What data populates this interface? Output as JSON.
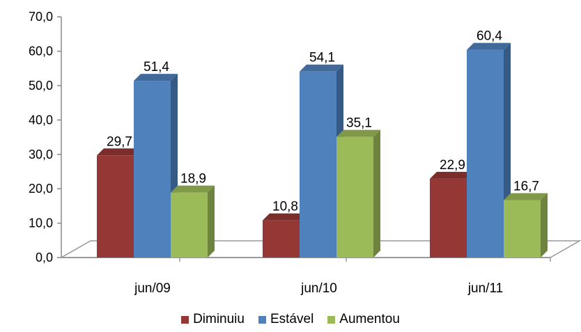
{
  "chart_data": {
    "type": "bar",
    "title": "",
    "xlabel": "",
    "ylabel": "",
    "categories": [
      "jun/09",
      "jun/10",
      "jun/11"
    ],
    "series": [
      {
        "name": "Diminuiu",
        "values": [
          29.7,
          10.8,
          22.9
        ],
        "color": "#953735"
      },
      {
        "name": "Estável",
        "values": [
          51.4,
          54.1,
          60.4
        ],
        "color": "#4F81BD"
      },
      {
        "name": "Aumentou",
        "values": [
          18.9,
          35.1,
          16.7
        ],
        "color": "#9BBB59"
      }
    ],
    "y_ticks": [
      "0,0",
      "10,0",
      "20,0",
      "30,0",
      "40,0",
      "50,0",
      "60,0",
      "70,0"
    ],
    "ylim": [
      0,
      70
    ],
    "data_labels": [
      [
        "29,7",
        "10,8",
        "22,9"
      ],
      [
        "51,4",
        "54,1",
        "60,4"
      ],
      [
        "18,9",
        "35,1",
        "16,7"
      ]
    ],
    "grid": false,
    "legend_position": "bottom",
    "style": "3d-clustered-bar"
  }
}
